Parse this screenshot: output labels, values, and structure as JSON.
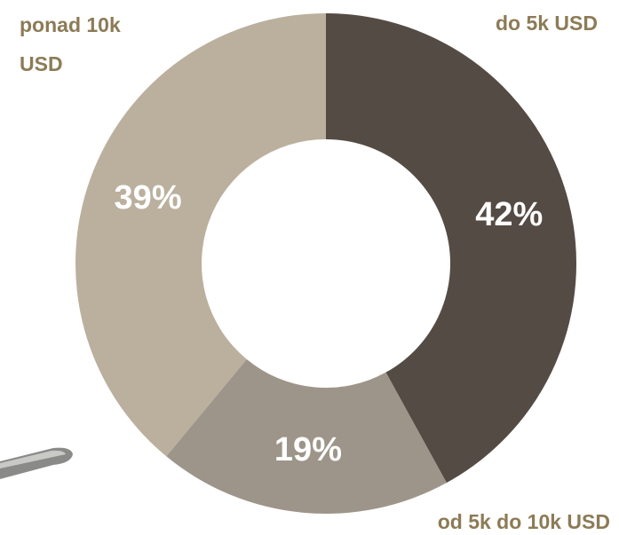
{
  "chart_data": {
    "type": "donut",
    "categories": [
      "do 5k USD",
      "od 5k do 10k USD",
      "ponad 10k USD"
    ],
    "values": [
      42,
      19,
      39
    ],
    "value_labels": [
      "42%",
      "19%",
      "39%"
    ],
    "colors": [
      "#544b44",
      "#9e958a",
      "#bbb09e"
    ]
  }
}
